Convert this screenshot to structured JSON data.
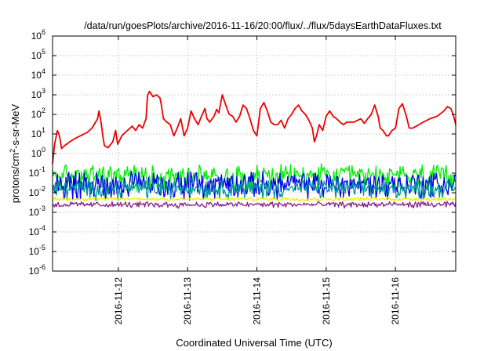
{
  "chart_data": {
    "type": "line",
    "title": "/data/run/goesPlots/archive/2016-11-16/20:00/flux/../flux/5daysEarthDataFluxes.txt",
    "xlabel": "Coordinated Universal Time (UTC)",
    "ylabel_main": "protons/cm",
    "ylabel_sup": "2",
    "ylabel_tail": "-s-sr-MeV",
    "y_scale": "log",
    "ylim_exponent": [
      -6,
      6
    ],
    "y_tick_exponents": [
      -6,
      -5,
      -4,
      -3,
      -2,
      -1,
      0,
      1,
      2,
      3,
      4,
      5,
      6
    ],
    "xlim_days": [
      11.05,
      16.87
    ],
    "x_ticks": [
      {
        "day": 12,
        "label": "2016-11-12"
      },
      {
        "day": 13,
        "label": "2016-11-13"
      },
      {
        "day": 14,
        "label": "2016-11-14"
      },
      {
        "day": 15,
        "label": "2016-11-15"
      },
      {
        "day": 16,
        "label": "2016-11-16"
      }
    ],
    "grid": true,
    "series": [
      {
        "color": "#ee0000",
        "points": [
          [
            11.05,
            0.3
          ],
          [
            11.08,
            3.0
          ],
          [
            11.12,
            15
          ],
          [
            11.15,
            8
          ],
          [
            11.18,
            1.8
          ],
          [
            11.22,
            2.5
          ],
          [
            11.3,
            4
          ],
          [
            11.38,
            6
          ],
          [
            11.45,
            8
          ],
          [
            11.55,
            12
          ],
          [
            11.62,
            20
          ],
          [
            11.7,
            60
          ],
          [
            11.72,
            150
          ],
          [
            11.75,
            40
          ],
          [
            11.78,
            6
          ],
          [
            11.8,
            2.5
          ],
          [
            11.85,
            2
          ],
          [
            11.92,
            4
          ],
          [
            11.96,
            15
          ],
          [
            11.99,
            3
          ],
          [
            12.05,
            8
          ],
          [
            12.1,
            12
          ],
          [
            12.2,
            25
          ],
          [
            12.25,
            15
          ],
          [
            12.3,
            30
          ],
          [
            12.35,
            20
          ],
          [
            12.4,
            60
          ],
          [
            12.42,
            900
          ],
          [
            12.45,
            1500
          ],
          [
            12.5,
            800
          ],
          [
            12.55,
            1000
          ],
          [
            12.6,
            700
          ],
          [
            12.62,
            300
          ],
          [
            12.65,
            60
          ],
          [
            12.7,
            40
          ],
          [
            12.75,
            30
          ],
          [
            12.8,
            8
          ],
          [
            12.85,
            20
          ],
          [
            12.9,
            60
          ],
          [
            12.95,
            8
          ],
          [
            13.0,
            20
          ],
          [
            13.05,
            150
          ],
          [
            13.1,
            60
          ],
          [
            13.15,
            30
          ],
          [
            13.2,
            80
          ],
          [
            13.25,
            200
          ],
          [
            13.28,
            60
          ],
          [
            13.32,
            40
          ],
          [
            13.38,
            80
          ],
          [
            13.42,
            180
          ],
          [
            13.45,
            120
          ],
          [
            13.5,
            1000
          ],
          [
            13.55,
            300
          ],
          [
            13.6,
            100
          ],
          [
            13.65,
            80
          ],
          [
            13.7,
            40
          ],
          [
            13.75,
            80
          ],
          [
            13.8,
            300
          ],
          [
            13.85,
            200
          ],
          [
            13.9,
            60
          ],
          [
            13.95,
            15
          ],
          [
            14.0,
            8
          ],
          [
            14.05,
            200
          ],
          [
            14.1,
            400
          ],
          [
            14.15,
            150
          ],
          [
            14.2,
            40
          ],
          [
            14.25,
            30
          ],
          [
            14.3,
            30
          ],
          [
            14.35,
            50
          ],
          [
            14.4,
            20
          ],
          [
            14.45,
            60
          ],
          [
            14.5,
            100
          ],
          [
            14.55,
            200
          ],
          [
            14.6,
            300
          ],
          [
            14.65,
            150
          ],
          [
            14.7,
            100
          ],
          [
            14.75,
            50
          ],
          [
            14.8,
            20
          ],
          [
            14.83,
            4
          ],
          [
            14.86,
            8
          ],
          [
            14.9,
            30
          ],
          [
            14.95,
            15
          ],
          [
            15.0,
            80
          ],
          [
            15.05,
            150
          ],
          [
            15.1,
            80
          ],
          [
            15.15,
            60
          ],
          [
            15.2,
            40
          ],
          [
            15.25,
            30
          ],
          [
            15.3,
            40
          ],
          [
            15.4,
            40
          ],
          [
            15.5,
            60
          ],
          [
            15.55,
            35
          ],
          [
            15.6,
            60
          ],
          [
            15.65,
            100
          ],
          [
            15.7,
            300
          ],
          [
            15.75,
            80
          ],
          [
            15.78,
            20
          ],
          [
            15.82,
            15
          ],
          [
            15.87,
            8
          ],
          [
            15.9,
            8
          ],
          [
            15.95,
            15
          ],
          [
            16.0,
            20
          ],
          [
            16.05,
            200
          ],
          [
            16.1,
            350
          ],
          [
            16.15,
            100
          ],
          [
            16.2,
            20
          ],
          [
            16.25,
            20
          ],
          [
            16.3,
            25
          ],
          [
            16.4,
            40
          ],
          [
            16.5,
            60
          ],
          [
            16.6,
            80
          ],
          [
            16.7,
            150
          ],
          [
            16.75,
            250
          ],
          [
            16.8,
            200
          ],
          [
            16.84,
            80
          ],
          [
            16.87,
            30
          ]
        ]
      },
      {
        "color": "#00ee00",
        "base": 0.08,
        "spread": 0.32
      },
      {
        "color": "#0000ee",
        "base": 0.03,
        "spread": 0.35
      },
      {
        "color": "#009999",
        "base": 0.018,
        "spread": 0.22
      },
      {
        "color": "#eeee00",
        "base": 0.0048,
        "spread": 0.05
      },
      {
        "color": "#882288",
        "base": 0.0025,
        "spread": 0.08
      }
    ]
  }
}
